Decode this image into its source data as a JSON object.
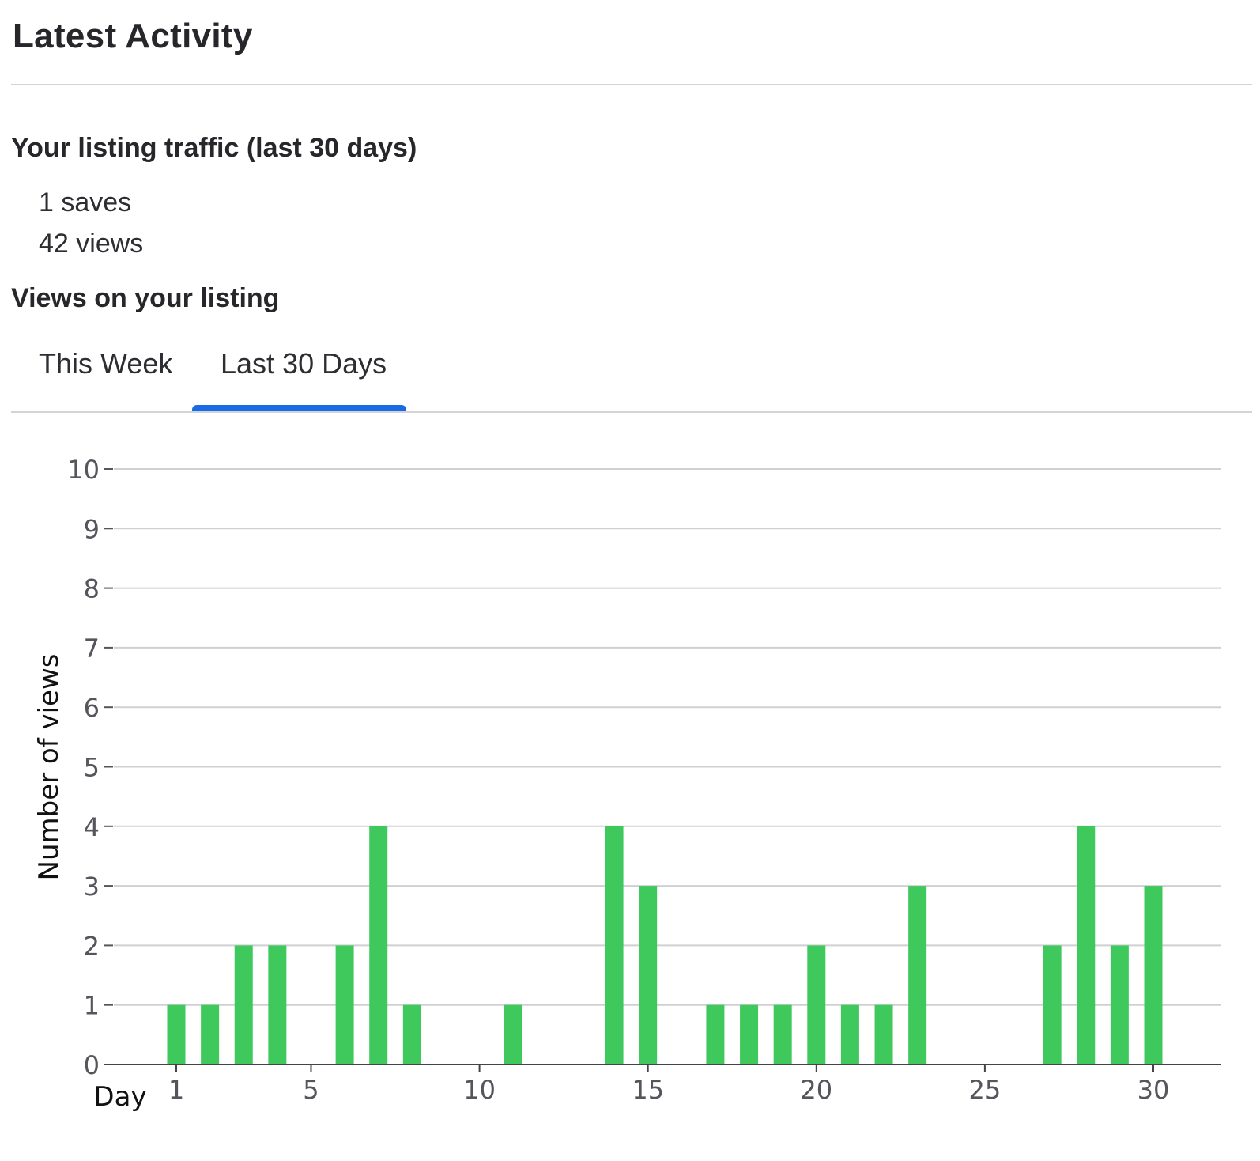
{
  "header": {
    "title": "Latest Activity"
  },
  "traffic": {
    "heading": "Your listing traffic (last 30 days)",
    "saves": "1 saves",
    "views": "42 views"
  },
  "views_section": {
    "heading": "Views on your listing",
    "tabs": [
      {
        "label": "This Week",
        "active": false
      },
      {
        "label": "Last 30 Days",
        "active": true
      }
    ]
  },
  "colors": {
    "bar": "#3fc95c",
    "tab_active": "#1a6ae6",
    "grid": "#d0d0d4",
    "axis_text": "#55555c"
  },
  "chart_data": {
    "type": "bar",
    "xlabel": "Day",
    "ylabel": "Number of views",
    "x": [
      1,
      2,
      3,
      4,
      5,
      6,
      7,
      8,
      9,
      10,
      11,
      12,
      13,
      14,
      15,
      16,
      17,
      18,
      19,
      20,
      21,
      22,
      23,
      24,
      25,
      26,
      27,
      28,
      29,
      30
    ],
    "values": [
      1,
      1,
      2,
      2,
      0,
      2,
      4,
      1,
      0,
      0,
      1,
      0,
      0,
      4,
      3,
      0,
      1,
      1,
      1,
      2,
      1,
      1,
      3,
      0,
      0,
      0,
      2,
      4,
      2,
      3
    ],
    "ylim": [
      0,
      10
    ],
    "yticks": [
      0,
      1,
      2,
      3,
      4,
      5,
      6,
      7,
      8,
      9,
      10
    ],
    "xticks": [
      1,
      5,
      10,
      15,
      20,
      25,
      30
    ],
    "grid": true
  }
}
